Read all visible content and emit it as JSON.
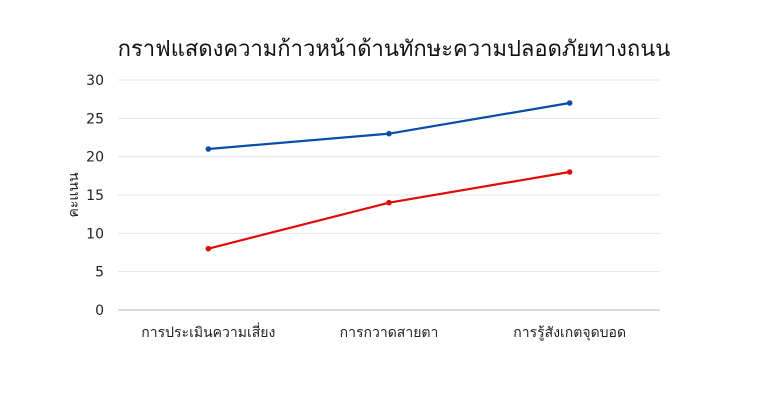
{
  "chart_data": {
    "type": "line",
    "title": "กราฟแสดงความก้าวหน้าด้านทักษะความปลอดภัยทางถนน",
    "xlabel": "",
    "ylabel": "คะแนน",
    "categories": [
      "การประเมินความเสี่ยง",
      "การกวาดสายตา",
      "การรู้สังเกตจุดบอด"
    ],
    "ylim": [
      0,
      30
    ],
    "yticks": [
      0,
      5,
      10,
      15,
      20,
      25,
      30
    ],
    "grid": true,
    "legend": "none",
    "series": [
      {
        "color": "#0a4ea8",
        "values": [
          21,
          23,
          27
        ]
      },
      {
        "color": "#e00b0b",
        "values": [
          8,
          14,
          18
        ]
      }
    ]
  }
}
